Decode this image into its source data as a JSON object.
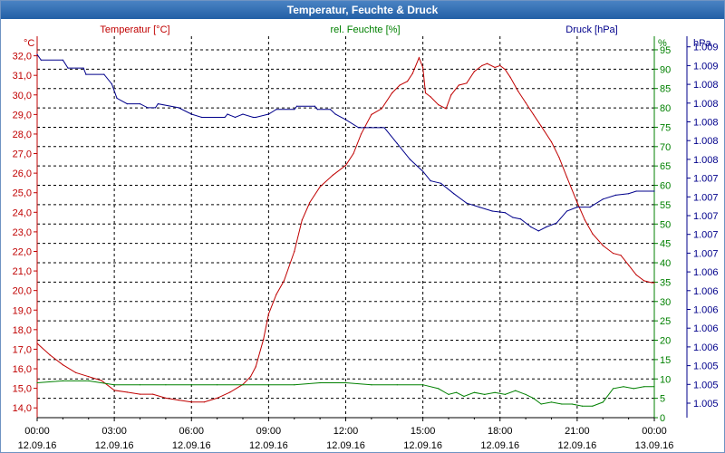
{
  "window": {
    "title": "Temperatur, Feuchte & Druck"
  },
  "colors": {
    "temperature": "#c00000",
    "humidity": "#008000",
    "pressure": "#00008b",
    "grid": "#000000",
    "axis": "#000000"
  },
  "chart_data": {
    "type": "line",
    "title": "Temperatur, Feuchte & Druck",
    "x_ticks": [
      {
        "time": "00:00",
        "date": "12.09.16"
      },
      {
        "time": "03:00",
        "date": "12.09.16"
      },
      {
        "time": "06:00",
        "date": "12.09.16"
      },
      {
        "time": "09:00",
        "date": "12.09.16"
      },
      {
        "time": "12:00",
        "date": "12.09.16"
      },
      {
        "time": "15:00",
        "date": "12.09.16"
      },
      {
        "time": "18:00",
        "date": "12.09.16"
      },
      {
        "time": "21:00",
        "date": "12.09.16"
      },
      {
        "time": "00:00",
        "date": "13.09.16"
      }
    ],
    "x_range_hours": [
      0,
      24
    ],
    "axes": {
      "temperature": {
        "unit_label": "°C",
        "legend": "Temperatur [°C]",
        "ylim": [
          13.5,
          33.0
        ],
        "tick_labels": [
          "14,0",
          "15,0",
          "16,0",
          "17,0",
          "18,0",
          "19,0",
          "20,0",
          "21,0",
          "22,0",
          "23,0",
          "24,0",
          "25,0",
          "26,0",
          "27,0",
          "28,0",
          "29,0",
          "30,0",
          "31,0",
          "32,0"
        ]
      },
      "humidity": {
        "unit_label": "%",
        "legend": "rel. Feuchte [%]",
        "ylim": [
          0,
          98.5
        ],
        "tick_labels": [
          "0",
          "5",
          "10",
          "15",
          "20",
          "25",
          "30",
          "35",
          "40",
          "45",
          "50",
          "55",
          "60",
          "65",
          "70",
          "75",
          "80",
          "85",
          "90",
          "95"
        ]
      },
      "pressure": {
        "unit_label": "hPa",
        "legend": "Druck [hPa]",
        "ylim": [
          1004.6,
          1009.4
        ],
        "tick_labels": [
          "1.005",
          "1.005",
          "1.005",
          "1.006",
          "1.006",
          "1.006",
          "1.006",
          "1.006",
          "1.007",
          "1.007",
          "1.007",
          "1.007",
          "1.007",
          "1.008",
          "1.008",
          "1.008",
          "1.008",
          "1.008",
          "1.009",
          "1.009"
        ]
      }
    },
    "series": [
      {
        "name": "Temperatur [°C]",
        "axis": "temperature",
        "points": [
          [
            0,
            17.3
          ],
          [
            0.5,
            16.7
          ],
          [
            1,
            16.2
          ],
          [
            1.5,
            15.8
          ],
          [
            2,
            15.6
          ],
          [
            2.5,
            15.4
          ],
          [
            3,
            14.9
          ],
          [
            3.5,
            14.8
          ],
          [
            4,
            14.7
          ],
          [
            4.5,
            14.7
          ],
          [
            5,
            14.5
          ],
          [
            5.5,
            14.4
          ],
          [
            6,
            14.3
          ],
          [
            6.5,
            14.3
          ],
          [
            7,
            14.5
          ],
          [
            7.5,
            14.8
          ],
          [
            8,
            15.2
          ],
          [
            8.3,
            15.6
          ],
          [
            8.5,
            16.1
          ],
          [
            8.8,
            17.5
          ],
          [
            9,
            18.8
          ],
          [
            9.3,
            19.8
          ],
          [
            9.6,
            20.5
          ],
          [
            10,
            22.0
          ],
          [
            10.3,
            23.6
          ],
          [
            10.6,
            24.5
          ],
          [
            11,
            25.3
          ],
          [
            11.5,
            25.9
          ],
          [
            12,
            26.4
          ],
          [
            12.3,
            27.0
          ],
          [
            12.6,
            28.0
          ],
          [
            13,
            29.0
          ],
          [
            13.4,
            29.3
          ],
          [
            13.8,
            30.1
          ],
          [
            14.1,
            30.5
          ],
          [
            14.4,
            30.7
          ],
          [
            14.6,
            31.1
          ],
          [
            14.85,
            31.9
          ],
          [
            15.0,
            31.4
          ],
          [
            15.1,
            30.1
          ],
          [
            15.3,
            29.9
          ],
          [
            15.6,
            29.5
          ],
          [
            15.9,
            29.3
          ],
          [
            16.1,
            30.0
          ],
          [
            16.4,
            30.5
          ],
          [
            16.7,
            30.6
          ],
          [
            17.0,
            31.2
          ],
          [
            17.3,
            31.5
          ],
          [
            17.5,
            31.6
          ],
          [
            17.8,
            31.4
          ],
          [
            18.0,
            31.5
          ],
          [
            18.2,
            31.3
          ],
          [
            18.4,
            30.9
          ],
          [
            18.7,
            30.2
          ],
          [
            19.0,
            29.6
          ],
          [
            19.3,
            29.0
          ],
          [
            19.6,
            28.4
          ],
          [
            20.0,
            27.6
          ],
          [
            20.3,
            26.8
          ],
          [
            20.6,
            25.8
          ],
          [
            21.0,
            24.5
          ],
          [
            21.3,
            23.6
          ],
          [
            21.6,
            22.9
          ],
          [
            22.0,
            22.3
          ],
          [
            22.4,
            21.9
          ],
          [
            22.7,
            21.8
          ],
          [
            23.0,
            21.3
          ],
          [
            23.3,
            20.8
          ],
          [
            23.6,
            20.5
          ],
          [
            23.9,
            20.4
          ],
          [
            24,
            20.4
          ]
        ]
      },
      {
        "name": "rel. Feuchte [%]",
        "axis": "humidity",
        "points": [
          [
            0,
            9
          ],
          [
            1,
            9.5
          ],
          [
            2,
            9.5
          ],
          [
            3,
            8.5
          ],
          [
            4,
            8.5
          ],
          [
            5,
            8.5
          ],
          [
            6,
            8.5
          ],
          [
            7,
            8.5
          ],
          [
            8,
            8.5
          ],
          [
            9,
            8.5
          ],
          [
            10,
            8.5
          ],
          [
            11,
            9
          ],
          [
            12,
            9
          ],
          [
            13,
            8.5
          ],
          [
            14,
            8.5
          ],
          [
            15,
            8.5
          ],
          [
            15.6,
            7.5
          ],
          [
            16,
            6
          ],
          [
            16.3,
            6.5
          ],
          [
            16.6,
            5.5
          ],
          [
            17,
            6.5
          ],
          [
            17.4,
            6
          ],
          [
            17.8,
            6.5
          ],
          [
            18.2,
            6
          ],
          [
            18.6,
            7
          ],
          [
            19,
            6
          ],
          [
            19.3,
            5
          ],
          [
            19.6,
            3.5
          ],
          [
            20,
            4
          ],
          [
            20.4,
            3.5
          ],
          [
            20.8,
            3.5
          ],
          [
            21.2,
            3
          ],
          [
            21.6,
            3
          ],
          [
            22,
            4
          ],
          [
            22.4,
            7.5
          ],
          [
            22.8,
            8
          ],
          [
            23.2,
            7.5
          ],
          [
            23.6,
            8
          ],
          [
            24,
            8
          ]
        ]
      },
      {
        "name": "Druck [hPa]",
        "axis": "pressure",
        "points": [
          [
            0,
            1009.17
          ],
          [
            0.15,
            1009.1
          ],
          [
            1,
            1009.1
          ],
          [
            1.2,
            1009.0
          ],
          [
            1.8,
            1009.0
          ],
          [
            1.9,
            1008.92
          ],
          [
            2.6,
            1008.92
          ],
          [
            2.9,
            1008.8
          ],
          [
            3.1,
            1008.62
          ],
          [
            3.5,
            1008.55
          ],
          [
            4.0,
            1008.55
          ],
          [
            4.3,
            1008.5
          ],
          [
            4.6,
            1008.5
          ],
          [
            4.7,
            1008.55
          ],
          [
            5.5,
            1008.5
          ],
          [
            6.0,
            1008.42
          ],
          [
            6.4,
            1008.38
          ],
          [
            7.3,
            1008.38
          ],
          [
            7.4,
            1008.42
          ],
          [
            7.7,
            1008.38
          ],
          [
            8.0,
            1008.42
          ],
          [
            8.4,
            1008.38
          ],
          [
            8.5,
            1008.38
          ],
          [
            9.0,
            1008.42
          ],
          [
            9.3,
            1008.48
          ],
          [
            10.0,
            1008.48
          ],
          [
            10.1,
            1008.52
          ],
          [
            10.8,
            1008.52
          ],
          [
            10.9,
            1008.48
          ],
          [
            11.4,
            1008.48
          ],
          [
            11.6,
            1008.42
          ],
          [
            12.0,
            1008.35
          ],
          [
            12.5,
            1008.25
          ],
          [
            13.5,
            1008.25
          ],
          [
            14.0,
            1008.05
          ],
          [
            14.5,
            1007.85
          ],
          [
            15.0,
            1007.7
          ],
          [
            15.3,
            1007.58
          ],
          [
            15.7,
            1007.55
          ],
          [
            16.2,
            1007.42
          ],
          [
            16.7,
            1007.3
          ],
          [
            17.2,
            1007.25
          ],
          [
            17.7,
            1007.2
          ],
          [
            18.2,
            1007.18
          ],
          [
            18.5,
            1007.12
          ],
          [
            18.8,
            1007.1
          ],
          [
            19.2,
            1007.0
          ],
          [
            19.5,
            1006.95
          ],
          [
            19.8,
            1007.0
          ],
          [
            20.2,
            1007.05
          ],
          [
            20.6,
            1007.2
          ],
          [
            21.0,
            1007.25
          ],
          [
            21.5,
            1007.25
          ],
          [
            22.0,
            1007.35
          ],
          [
            22.5,
            1007.4
          ],
          [
            23.0,
            1007.42
          ],
          [
            23.3,
            1007.45
          ],
          [
            24,
            1007.45
          ]
        ]
      }
    ]
  }
}
